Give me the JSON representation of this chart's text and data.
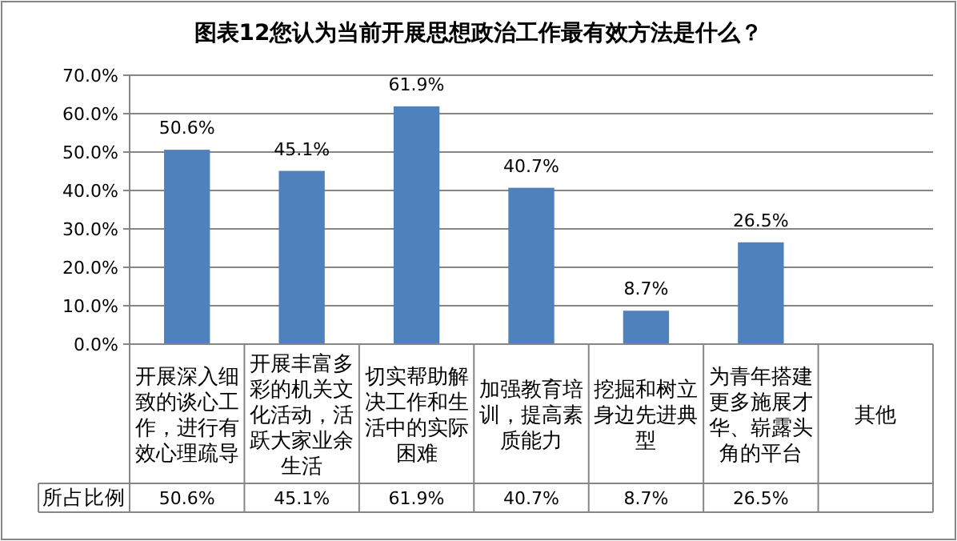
{
  "chart_data": {
    "type": "bar",
    "title": "图表12您认为当前开展思想政治工作最有效方法是什么？",
    "categories": [
      "开展深入细致的谈心工作，进行有效心理疏导",
      "开展丰富多彩的机关文化活动，活跃大家业余生活",
      "切实帮助解决工作和生活中的实际困难",
      "加强教育培训，提高素质能力",
      "挖掘和树立身边先进典型",
      "为青年搭建更多施展才华、崭露头角的平台",
      "其他"
    ],
    "series": [
      {
        "name": "所占比例",
        "color": "#4f81bd",
        "values": [
          50.6,
          45.1,
          61.9,
          40.7,
          8.7,
          26.5,
          null
        ],
        "value_labels": [
          "50.6%",
          "45.1%",
          "61.9%",
          "40.7%",
          "8.7%",
          "26.5%",
          null
        ]
      }
    ],
    "ylim": [
      0,
      70
    ],
    "yticks": [
      {
        "value": 0,
        "label": "0.0%"
      },
      {
        "value": 10,
        "label": "10.0%"
      },
      {
        "value": 20,
        "label": "20.0%"
      },
      {
        "value": 30,
        "label": "30.0%"
      },
      {
        "value": 40,
        "label": "40.0%"
      },
      {
        "value": 50,
        "label": "50.0%"
      },
      {
        "value": 60,
        "label": "60.0%"
      },
      {
        "value": 70,
        "label": "70.0%"
      }
    ],
    "grid": "y"
  }
}
